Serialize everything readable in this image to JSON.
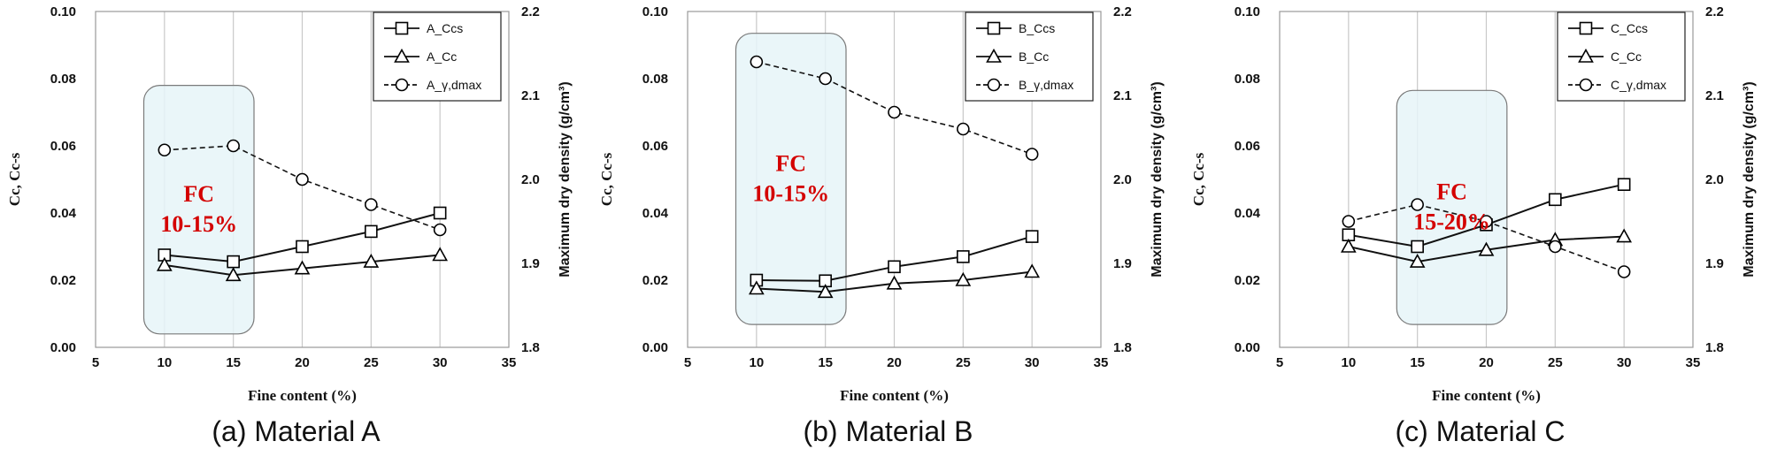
{
  "figure": {
    "panels": [
      {
        "caption": "(a)  Material  A",
        "chart_data": {
          "type": "line",
          "x": [
            10,
            15,
            20,
            25,
            30
          ],
          "xlabel": "Fine content (%)",
          "xlim": [
            5,
            35
          ],
          "xticks": [
            5,
            10,
            15,
            20,
            25,
            30,
            35
          ],
          "ylabel": "Cc, Cc-s",
          "ylim": [
            0,
            0.1
          ],
          "yticks": [
            "0.00",
            "0.02",
            "0.04",
            "0.06",
            "0.08",
            "0.10"
          ],
          "y2label": "Maximum dry density (g/cm³)",
          "y2lim": [
            1.8,
            2.2
          ],
          "y2ticks": [
            "1.8",
            "1.9",
            "2.0",
            "2.1",
            "2.2"
          ],
          "grid": "vertical",
          "legend_position": "top-right",
          "series": [
            {
              "name": "A_Ccs",
              "axis": "left",
              "marker": "square",
              "dash": "solid",
              "values": [
                0.0275,
                0.0255,
                0.03,
                0.0345,
                0.04
              ]
            },
            {
              "name": "A_Cc",
              "axis": "left",
              "marker": "triangle",
              "dash": "solid",
              "values": [
                0.0245,
                0.0215,
                0.0235,
                0.0255,
                0.0275
              ]
            },
            {
              "name": "A_γ,dmax",
              "axis": "right",
              "marker": "circle",
              "dash": "dashed",
              "values": [
                2.035,
                2.04,
                2.0,
                1.97,
                1.94
              ]
            }
          ],
          "highlight": {
            "label_line1": "FC",
            "label_line2": "10-15%",
            "x_range": [
              8.5,
              16.5
            ],
            "y_range": [
              0.004,
              0.078
            ],
            "color": "#d40000"
          }
        }
      },
      {
        "caption": "(b)  Material  B",
        "chart_data": {
          "type": "line",
          "x": [
            10,
            15,
            20,
            25,
            30
          ],
          "xlabel": "Fine content (%)",
          "xlim": [
            5,
            35
          ],
          "xticks": [
            5,
            10,
            15,
            20,
            25,
            30,
            35
          ],
          "ylabel": "Cc, Cc-s",
          "ylim": [
            0,
            0.1
          ],
          "yticks": [
            "0.00",
            "0.02",
            "0.04",
            "0.06",
            "0.08",
            "0.10"
          ],
          "y2label": "Maximum dry density (g/cm³)",
          "y2lim": [
            1.8,
            2.2
          ],
          "y2ticks": [
            "1.8",
            "1.9",
            "2.0",
            "2.1",
            "2.2"
          ],
          "grid": "vertical",
          "legend_position": "top-right",
          "series": [
            {
              "name": "B_Ccs",
              "axis": "left",
              "marker": "square",
              "dash": "solid",
              "values": [
                0.02,
                0.0198,
                0.024,
                0.027,
                0.033
              ]
            },
            {
              "name": "B_Cc",
              "axis": "left",
              "marker": "triangle",
              "dash": "solid",
              "values": [
                0.0175,
                0.0165,
                0.019,
                0.02,
                0.0225
              ]
            },
            {
              "name": "B_γ,dmax",
              "axis": "right",
              "marker": "circle",
              "dash": "dashed",
              "values": [
                2.14,
                2.12,
                2.08,
                2.06,
                2.03
              ]
            }
          ],
          "highlight": {
            "label_line1": "FC",
            "label_line2": "10-15%",
            "x_range": [
              8.5,
              16.5
            ],
            "y_range": [
              0.0068,
              0.0935
            ],
            "color": "#d40000"
          }
        }
      },
      {
        "caption": "(c)  Material  C",
        "chart_data": {
          "type": "line",
          "x": [
            10,
            15,
            20,
            25,
            30
          ],
          "xlabel": "Fine content (%)",
          "xlim": [
            5,
            35
          ],
          "xticks": [
            5,
            10,
            15,
            20,
            25,
            30,
            35
          ],
          "ylabel": "Cc, Cc-s",
          "ylim": [
            0,
            0.1
          ],
          "yticks": [
            "0.00",
            "0.02",
            "0.04",
            "0.06",
            "0.08",
            "0.10"
          ],
          "y2label": "Maximum dry density (g/cm³)",
          "y2lim": [
            1.8,
            2.2
          ],
          "y2ticks": [
            "1.8",
            "1.9",
            "2.0",
            "2.1",
            "2.2"
          ],
          "grid": "vertical",
          "legend_position": "top-right",
          "series": [
            {
              "name": "C_Ccs",
              "axis": "left",
              "marker": "square",
              "dash": "solid",
              "values": [
                0.0335,
                0.03,
                0.0365,
                0.044,
                0.0485
              ]
            },
            {
              "name": "C_Cc",
              "axis": "left",
              "marker": "triangle",
              "dash": "solid",
              "values": [
                0.03,
                0.0255,
                0.029,
                0.032,
                0.033
              ]
            },
            {
              "name": "C_γ,dmax",
              "axis": "right",
              "marker": "circle",
              "dash": "dashed",
              "values": [
                1.95,
                1.97,
                1.95,
                1.92,
                1.89
              ]
            }
          ],
          "highlight": {
            "label_line1": "FC",
            "label_line2": "15-20%",
            "x_range": [
              13.5,
              21.5
            ],
            "y_range": [
              0.0068,
              0.0765
            ],
            "color": "#d40000"
          }
        }
      }
    ]
  }
}
